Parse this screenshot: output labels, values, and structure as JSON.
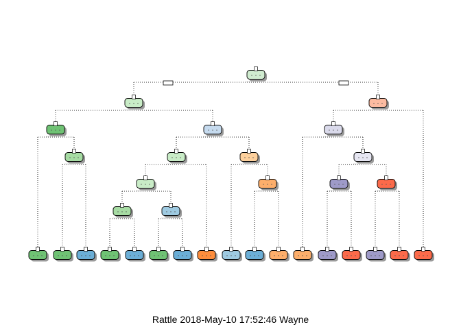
{
  "caption": "Rattle 2018-May-10 17:52:46 Wayne",
  "palette": {
    "green_dark": "#6fc274",
    "green_mid": "#a6dba3",
    "green_light": "#c9ecc7",
    "blue": "#6baed6",
    "blue_light": "#c6dbef",
    "blue_pale": "#9ecae1",
    "orange_dark": "#fd8d3c",
    "orange_light": "#fdd09c",
    "orange_mid": "#fdae6b",
    "salmon": "#fcbba1",
    "red": "#fb6a4a",
    "lavender_light": "#dadaeb",
    "lavender_pale": "#e6e6f2",
    "purple": "#9e9ac8",
    "purple_light": "#bcbddc"
  },
  "tree": {
    "nodes": [
      {
        "id": "root",
        "color": "#d0ecd0"
      },
      {
        "id": "n2",
        "color": "#c9ecc7"
      },
      {
        "id": "n3",
        "color": "#fcbba1"
      },
      {
        "id": "n4",
        "color": "#6fc274"
      },
      {
        "id": "n5",
        "color": "#c6dbef"
      },
      {
        "id": "n6",
        "color": "#dadaeb"
      },
      {
        "id": "n9",
        "color": "#a6dba3"
      },
      {
        "id": "n10",
        "color": "#c9ecc7"
      },
      {
        "id": "n11",
        "color": "#fdd09c"
      },
      {
        "id": "n13",
        "color": "#e6e6f2"
      },
      {
        "id": "n20",
        "color": "#c9ecc7"
      },
      {
        "id": "n23",
        "color": "#fdae6b"
      },
      {
        "id": "n26",
        "color": "#9e9ac8"
      },
      {
        "id": "n27",
        "color": "#fb6a4a"
      },
      {
        "id": "n40",
        "color": "#a6dba3"
      },
      {
        "id": "n41",
        "color": "#9ecae1"
      },
      {
        "id": "leaf1",
        "color": "#6fc274"
      },
      {
        "id": "leaf2",
        "color": "#6fc274"
      },
      {
        "id": "leaf3",
        "color": "#6baed6"
      },
      {
        "id": "leaf4",
        "color": "#6fc274"
      },
      {
        "id": "leaf5",
        "color": "#6baed6"
      },
      {
        "id": "leaf6",
        "color": "#6fc274"
      },
      {
        "id": "leaf7",
        "color": "#6baed6"
      },
      {
        "id": "leaf8",
        "color": "#fd8d3c"
      },
      {
        "id": "leaf9",
        "color": "#9ecae1"
      },
      {
        "id": "leaf10",
        "color": "#6baed6"
      },
      {
        "id": "leaf11",
        "color": "#fdae6b"
      },
      {
        "id": "leaf12",
        "color": "#fdae6b"
      },
      {
        "id": "leaf13",
        "color": "#9e9ac8"
      },
      {
        "id": "leaf14",
        "color": "#fb6a4a"
      },
      {
        "id": "leaf15",
        "color": "#9e9ac8"
      },
      {
        "id": "leaf16",
        "color": "#fb6a4a"
      },
      {
        "id": "leaf17",
        "color": "#fb6a4a"
      }
    ]
  }
}
